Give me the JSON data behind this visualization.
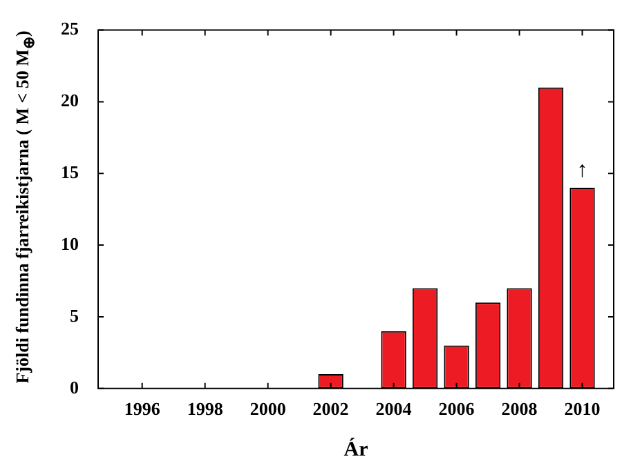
{
  "chart_data": {
    "type": "bar",
    "xlabel": "Ár",
    "ylabel": "Fjöldi fundinna fjarreikistjarna ( M < 50 M$_{⊕}$)",
    "x": [
      2002,
      2004,
      2005,
      2006,
      2007,
      2008,
      2009,
      2010
    ],
    "values": [
      1,
      4,
      7,
      3,
      6,
      7,
      21,
      14
    ],
    "color": "#ed1c24",
    "xlim": [
      1994.6,
      2011
    ],
    "xticks": [
      1996,
      1998,
      2000,
      2002,
      2004,
      2006,
      2008,
      2010
    ],
    "ylim": [
      0,
      25
    ],
    "yticks": [
      0,
      5,
      10,
      15,
      20,
      25
    ],
    "grid": false,
    "legend": false,
    "annotations": [
      {
        "text": "↑",
        "x": 2010,
        "y": 14
      }
    ]
  }
}
